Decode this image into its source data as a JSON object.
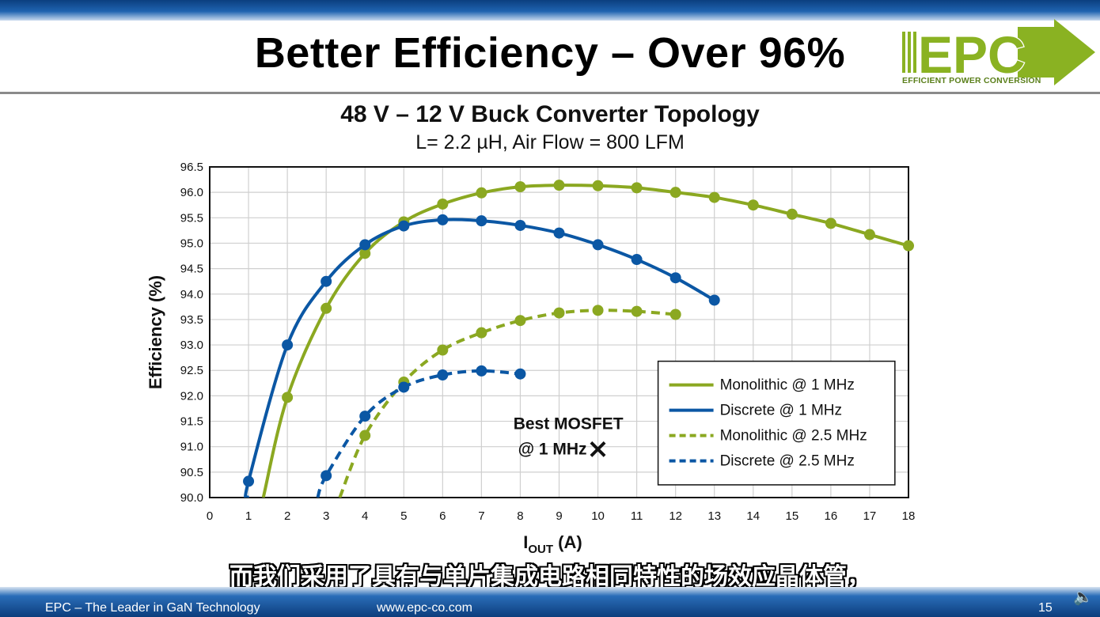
{
  "slide": {
    "title": "Better Efficiency – Over 96%",
    "page_number": "15",
    "footer_left": "EPC – The Leader in GaN Technology",
    "footer_center": "www.epc-co.com",
    "caption": "而我们采用了具有与单片集成电路相同特性的场效应晶体管，"
  },
  "logo": {
    "text": "EPC",
    "tagline": "EFFICIENT POWER CONVERSION",
    "color": "#8ab222"
  },
  "colors": {
    "green": "#8ba821",
    "blue": "#0b57a4"
  },
  "chart_data": {
    "type": "line",
    "title": "48 V – 12 V Buck Converter Topology",
    "subtitle": "L= 2.2 µH, Air Flow = 800 LFM",
    "xlabel_main": "I",
    "xlabel_sub": "OUT",
    "xlabel_unit": " (A)",
    "ylabel": "Efficiency (%)",
    "xlim": [
      0,
      18
    ],
    "ylim": [
      90.0,
      96.5
    ],
    "x_ticks": [
      "0",
      "1",
      "2",
      "3",
      "4",
      "5",
      "6",
      "7",
      "8",
      "9",
      "10",
      "11",
      "12",
      "13",
      "14",
      "15",
      "16",
      "17",
      "18"
    ],
    "y_ticks": [
      "90.0",
      "90.5",
      "91.0",
      "91.5",
      "92.0",
      "92.5",
      "93.0",
      "93.5",
      "94.0",
      "94.5",
      "95.0",
      "95.5",
      "96.0",
      "96.5"
    ],
    "grid": true,
    "legend_position": "bottom-right",
    "series": [
      {
        "name": "Monolithic @ 1 MHz",
        "color": "#8ba821",
        "dash": false,
        "x": [
          2,
          3,
          4,
          5,
          6,
          7,
          8,
          9,
          10,
          11,
          12,
          13,
          14,
          15,
          16,
          17,
          18
        ],
        "y": [
          91.97,
          93.72,
          94.8,
          95.42,
          95.77,
          95.99,
          96.11,
          96.14,
          96.13,
          96.09,
          96.0,
          95.9,
          95.75,
          95.57,
          95.39,
          95.17,
          94.95
        ],
        "curve_start": [
          1.38,
          90.0
        ]
      },
      {
        "name": "Discrete @ 1 MHz",
        "color": "#0b57a4",
        "dash": false,
        "x": [
          1,
          2,
          3,
          4,
          5,
          6,
          7,
          8,
          9,
          10,
          11,
          12,
          13
        ],
        "y": [
          90.32,
          93.0,
          94.25,
          94.97,
          95.34,
          95.46,
          95.44,
          95.35,
          95.2,
          94.97,
          94.68,
          94.32,
          93.88
        ],
        "curve_start": [
          0.98,
          90.0
        ]
      },
      {
        "name": "Monolithic @ 2.5 MHz",
        "color": "#8ba821",
        "dash": true,
        "x": [
          4,
          5,
          6,
          7,
          8,
          9,
          10,
          11,
          12
        ],
        "y": [
          91.22,
          92.27,
          92.9,
          93.24,
          93.48,
          93.63,
          93.68,
          93.66,
          93.6
        ],
        "curve_start": [
          3.35,
          90.0
        ]
      },
      {
        "name": "Discrete @ 2.5 MHz",
        "color": "#0b57a4",
        "dash": true,
        "x": [
          3,
          4,
          5,
          6,
          7,
          8
        ],
        "y": [
          90.43,
          91.6,
          92.17,
          92.41,
          92.49,
          92.43
        ],
        "curve_start": [
          2.78,
          90.0
        ]
      }
    ],
    "annotation": {
      "label_line1": "Best MOSFET",
      "label_line2": "@ 1 MHz",
      "marker": "×",
      "x": 10.0,
      "y": 90.97
    }
  }
}
